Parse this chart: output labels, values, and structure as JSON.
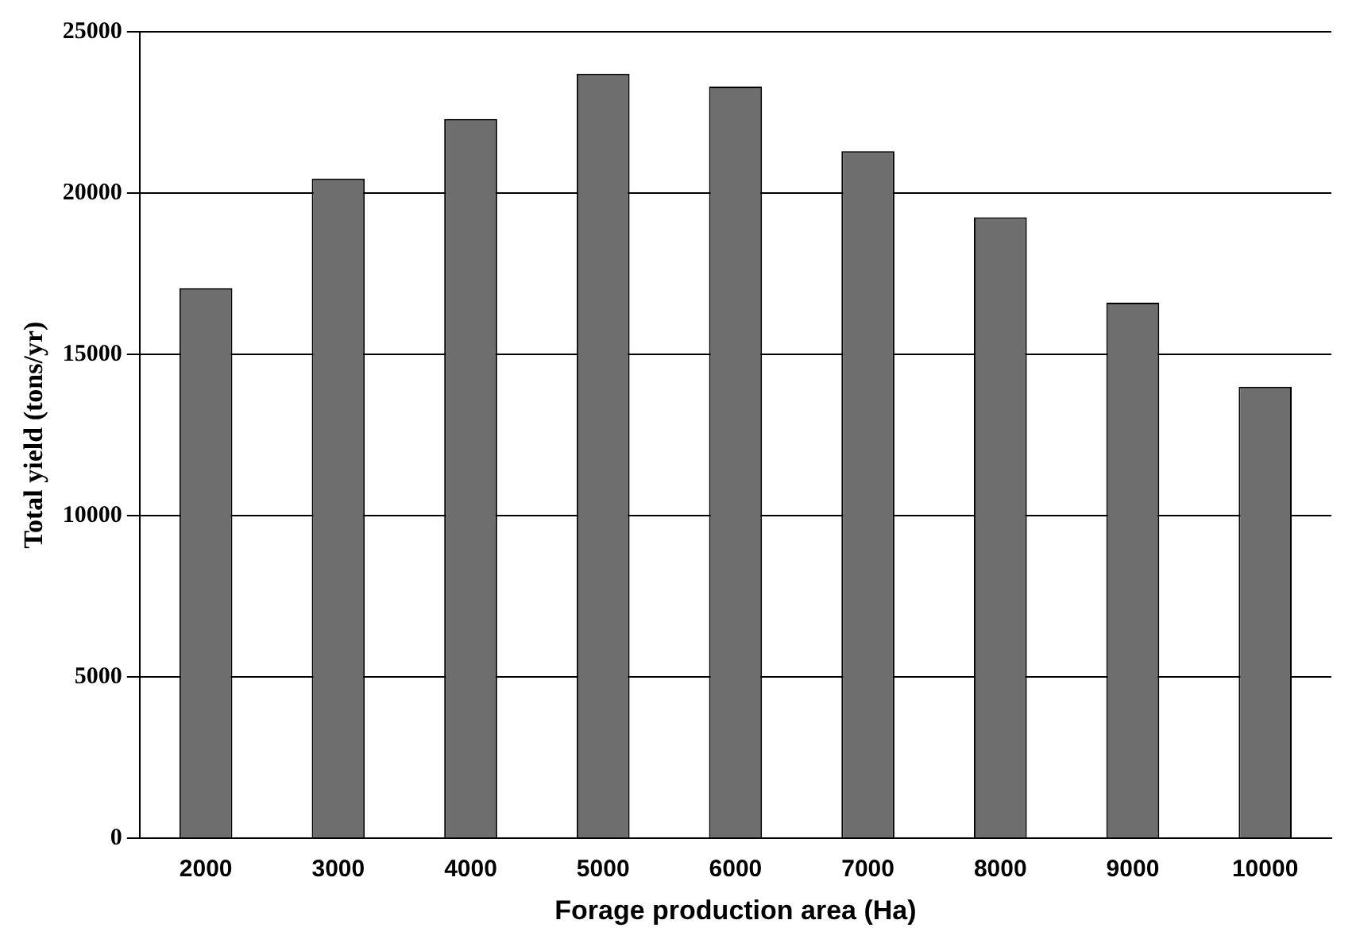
{
  "chart_data": {
    "type": "bar",
    "xlabel": "Forage production area (Ha)",
    "ylabel": "Total yield (tons/yr)",
    "categories": [
      "2000",
      "3000",
      "4000",
      "5000",
      "6000",
      "7000",
      "8000",
      "9000",
      "10000"
    ],
    "values": [
      17050,
      20450,
      22300,
      23700,
      23300,
      21300,
      19250,
      16600,
      14000
    ],
    "color": "#6e6e6e",
    "ylim": [
      0,
      25000
    ],
    "yticks": [
      0,
      5000,
      10000,
      15000,
      20000,
      25000
    ],
    "grid": "y",
    "legend": false
  }
}
